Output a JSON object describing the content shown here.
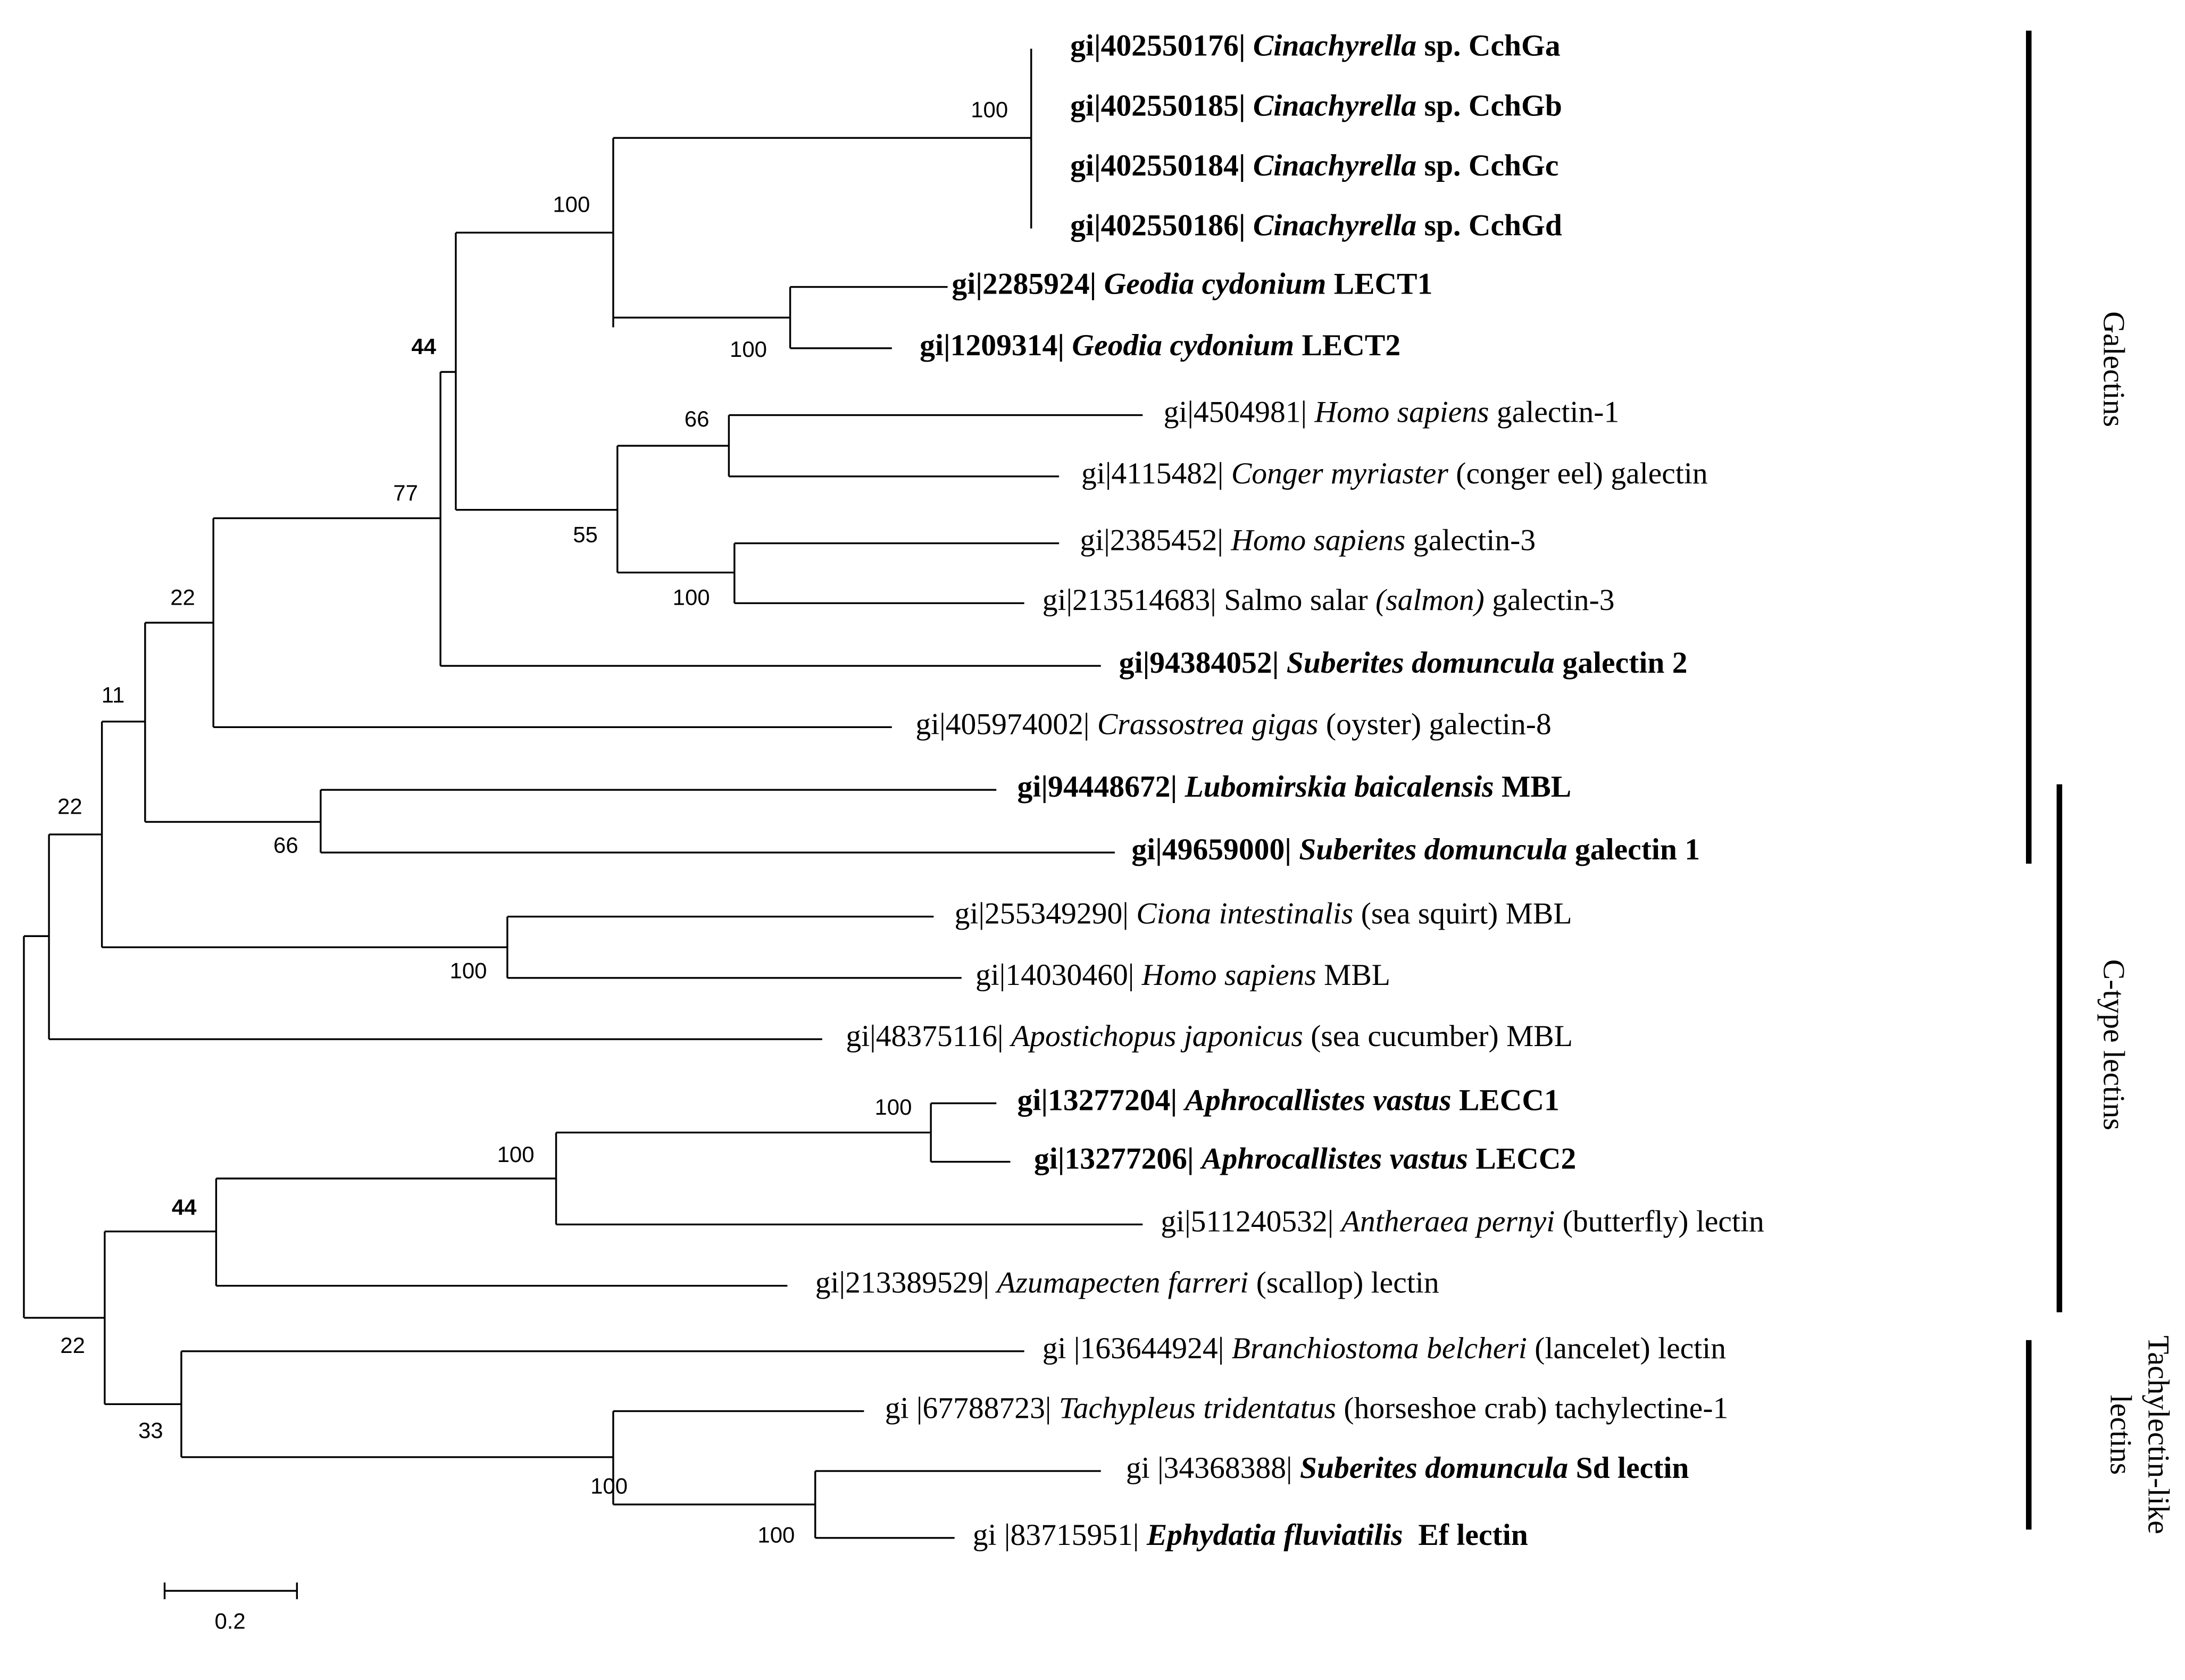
{
  "taxa": [
    {
      "parts": [
        {
          "text": "gi|402550176| ",
          "style": "b"
        },
        {
          "text": "Cinachyrella",
          "style": "bi"
        },
        {
          "text": " sp. CchGa",
          "style": "b"
        }
      ]
    },
    {
      "parts": [
        {
          "text": "gi|402550185| ",
          "style": "b"
        },
        {
          "text": "Cinachyrella",
          "style": "bi"
        },
        {
          "text": " sp. CchGb",
          "style": "b"
        }
      ]
    },
    {
      "parts": [
        {
          "text": "gi|402550184| ",
          "style": "b"
        },
        {
          "text": "Cinachyrella",
          "style": "bi"
        },
        {
          "text": " sp. CchGc",
          "style": "b"
        }
      ]
    },
    {
      "parts": [
        {
          "text": "gi|402550186| ",
          "style": "b"
        },
        {
          "text": "Cinachyrella",
          "style": "bi"
        },
        {
          "text": " sp. CchGd",
          "style": "b"
        }
      ]
    },
    {
      "parts": [
        {
          "text": "gi|2285924| ",
          "style": "b"
        },
        {
          "text": "Geodia cydonium",
          "style": "bi"
        },
        {
          "text": " LECT1",
          "style": "b"
        }
      ]
    },
    {
      "parts": [
        {
          "text": "gi|1209314| ",
          "style": "b"
        },
        {
          "text": "Geodia cydonium",
          "style": "bi"
        },
        {
          "text": " LECT2",
          "style": "b"
        }
      ]
    },
    {
      "parts": [
        {
          "text": "gi|4504981| ",
          "style": "r"
        },
        {
          "text": "Homo sapiens",
          "style": "i"
        },
        {
          "text": " galectin-1",
          "style": "r"
        }
      ]
    },
    {
      "parts": [
        {
          "text": "gi|4115482| ",
          "style": "r"
        },
        {
          "text": "Conger myriaster",
          "style": "i"
        },
        {
          "text": " (conger eel) galectin",
          "style": "r"
        }
      ]
    },
    {
      "parts": [
        {
          "text": "gi|2385452| ",
          "style": "r"
        },
        {
          "text": "Homo sapiens",
          "style": "i"
        },
        {
          "text": " galectin-3",
          "style": "r"
        }
      ]
    },
    {
      "parts": [
        {
          "text": "gi|213514683| Salmo salar ",
          "style": "r"
        },
        {
          "text": "(salmon)",
          "style": "i"
        },
        {
          "text": " galectin-3",
          "style": "r"
        }
      ]
    },
    {
      "parts": [
        {
          "text": "gi|94384052| ",
          "style": "b"
        },
        {
          "text": "Suberites domuncula",
          "style": "bi"
        },
        {
          "text": " galectin 2",
          "style": "b"
        }
      ]
    },
    {
      "parts": [
        {
          "text": "gi|405974002| ",
          "style": "r"
        },
        {
          "text": "Crassostrea gigas",
          "style": "i"
        },
        {
          "text": " (oyster) galectin-8",
          "style": "r"
        }
      ]
    },
    {
      "parts": [
        {
          "text": "gi|94448672| ",
          "style": "b"
        },
        {
          "text": "Lubomirskia baicalensis",
          "style": "bi"
        },
        {
          "text": " MBL",
          "style": "b"
        }
      ]
    },
    {
      "parts": [
        {
          "text": "gi|49659000| ",
          "style": "b"
        },
        {
          "text": "Suberites domuncula",
          "style": "bi"
        },
        {
          "text": " galectin 1",
          "style": "b"
        }
      ]
    },
    {
      "parts": [
        {
          "text": "gi|255349290| ",
          "style": "r"
        },
        {
          "text": "Ciona intestinalis",
          "style": "i"
        },
        {
          "text": " (sea squirt) MBL",
          "style": "r"
        }
      ]
    },
    {
      "parts": [
        {
          "text": "gi|14030460| ",
          "style": "r"
        },
        {
          "text": "Homo sapiens",
          "style": "i"
        },
        {
          "text": " MBL",
          "style": "r"
        }
      ]
    },
    {
      "parts": [
        {
          "text": "gi|48375116| ",
          "style": "r"
        },
        {
          "text": "Apostichopus japonicus",
          "style": "i"
        },
        {
          "text": " (sea cucumber) MBL",
          "style": "r"
        }
      ]
    },
    {
      "parts": [
        {
          "text": "gi|13277204| ",
          "style": "b"
        },
        {
          "text": "Aphrocallistes vastus",
          "style": "bi"
        },
        {
          "text": " LECC1",
          "style": "b"
        }
      ]
    },
    {
      "parts": [
        {
          "text": "gi|13277206| ",
          "style": "b"
        },
        {
          "text": "Aphrocallistes vastus",
          "style": "bi"
        },
        {
          "text": " LECC2",
          "style": "b"
        }
      ]
    },
    {
      "parts": [
        {
          "text": "gi|511240532| ",
          "style": "r"
        },
        {
          "text": "Antheraea pernyi",
          "style": "i"
        },
        {
          "text": " (butterfly) lectin",
          "style": "r"
        }
      ]
    },
    {
      "parts": [
        {
          "text": "gi|213389529| ",
          "style": "r"
        },
        {
          "text": "Azumapecten farreri",
          "style": "i"
        },
        {
          "text": " (scallop) lectin",
          "style": "r"
        }
      ]
    },
    {
      "parts": [
        {
          "text": "gi |163644924| ",
          "style": "r"
        },
        {
          "text": "Branchiostoma belcheri",
          "style": "i"
        },
        {
          "text": " (lancelet) lectin",
          "style": "r"
        }
      ]
    },
    {
      "parts": [
        {
          "text": "gi |67788723| ",
          "style": "r"
        },
        {
          "text": "Tachypleus tridentatus",
          "style": "i"
        },
        {
          "text": " (horseshoe crab) tachylectine-1",
          "style": "r"
        }
      ]
    },
    {
      "parts": [
        {
          "text": "gi |34368388| ",
          "style": "r"
        },
        {
          "text": "Suberites domuncula",
          "style": "bi"
        },
        {
          "text": " Sd lectin",
          "style": "b"
        }
      ]
    },
    {
      "parts": [
        {
          "text": "gi |83715951| ",
          "style": "r"
        },
        {
          "text": "Ephydatia fluviatilis",
          "style": "bi"
        },
        {
          "text": "  Ef lectin",
          "style": "b"
        }
      ]
    }
  ],
  "support": [
    {
      "value": 100,
      "style": "r"
    },
    {
      "value": 100,
      "style": "r"
    },
    {
      "value": 100,
      "style": "r"
    },
    {
      "value": 44,
      "style": "b"
    },
    {
      "value": 66,
      "style": "r"
    },
    {
      "value": 77,
      "style": "r"
    },
    {
      "value": 55,
      "style": "r"
    },
    {
      "value": 100,
      "style": "r"
    },
    {
      "value": 22,
      "style": "r"
    },
    {
      "value": 11,
      "style": "r"
    },
    {
      "value": 22,
      "style": "r"
    },
    {
      "value": 66,
      "style": "r"
    },
    {
      "value": 100,
      "style": "r"
    },
    {
      "value": 100,
      "style": "r"
    },
    {
      "value": 100,
      "style": "r"
    },
    {
      "value": 44,
      "style": "b"
    },
    {
      "value": 22,
      "style": "r"
    },
    {
      "value": 33,
      "style": "r"
    },
    {
      "value": 100,
      "style": "r"
    },
    {
      "value": 100,
      "style": "r"
    }
  ],
  "clades": [
    {
      "lines": [
        "Galectins"
      ]
    },
    {
      "lines": [
        "C-type lectins"
      ]
    },
    {
      "lines": [
        "Tachylectin-like",
        "lectins"
      ]
    }
  ],
  "scale_bar": {
    "label": 0.2
  }
}
